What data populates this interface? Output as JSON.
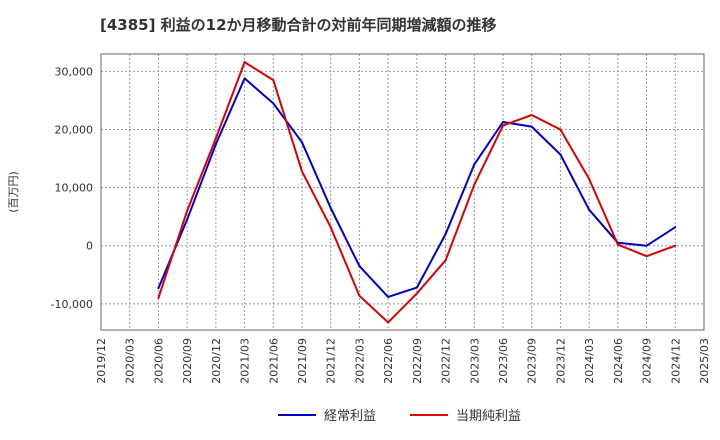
{
  "chart_data": {
    "type": "line",
    "title": "[4385]  利益の12か月移動合計の対前年同期増減額の推移",
    "xlabel": "",
    "ylabel": "(百万円)",
    "ylim": [
      -14500,
      33000
    ],
    "yticks": [
      -10000,
      0,
      10000,
      20000,
      30000
    ],
    "ytick_labels": [
      "-10,000",
      "0",
      "10,000",
      "20,000",
      "30,000"
    ],
    "categories": [
      "2019/12",
      "2020/03",
      "2020/06",
      "2020/09",
      "2020/12",
      "2021/03",
      "2021/06",
      "2021/09",
      "2021/12",
      "2022/03",
      "2022/06",
      "2022/09",
      "2022/12",
      "2023/03",
      "2023/06",
      "2023/09",
      "2023/12",
      "2024/03",
      "2024/06",
      "2024/09",
      "2024/12",
      "2025/03"
    ],
    "grid": true,
    "legend_position": "bottom",
    "series": [
      {
        "name": "経常利益",
        "color": "#0000cc",
        "values": [
          null,
          null,
          -7300,
          4500,
          17500,
          28800,
          24500,
          17800,
          6500,
          -3500,
          -8800,
          -7200,
          2000,
          14000,
          21300,
          20500,
          15700,
          6200,
          500,
          0,
          3200,
          null
        ]
      },
      {
        "name": "当期純利益",
        "color": "#dd0000",
        "values": [
          null,
          null,
          -9000,
          6000,
          18500,
          31600,
          28500,
          12800,
          3200,
          -8600,
          -13200,
          -8200,
          -2500,
          10500,
          20700,
          22500,
          20000,
          11500,
          200,
          -1800,
          0,
          null
        ]
      }
    ]
  }
}
